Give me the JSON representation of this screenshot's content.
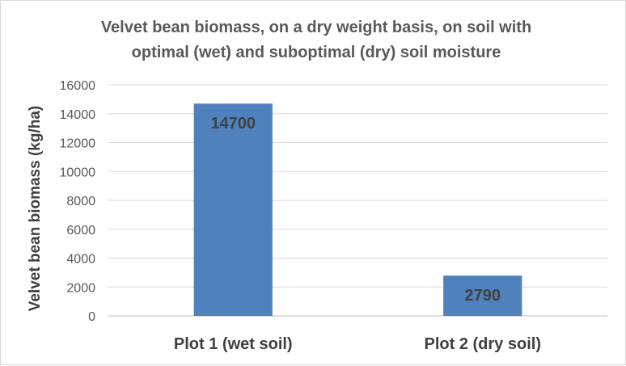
{
  "chart_data": {
    "type": "bar",
    "title_lines": [
      "Velvet bean biomass, on a dry weight basis, on soil with",
      "optimal (wet) and suboptimal (dry) soil moisture"
    ],
    "xlabel": "",
    "ylabel": "Velvet bean biomass (kg/ha)",
    "categories": [
      "Plot 1 (wet soil)",
      "Plot 2 (dry soil)"
    ],
    "values": [
      14700,
      2790
    ],
    "data_labels": [
      "14700",
      "2790"
    ],
    "ylim": [
      0,
      16000
    ],
    "yticks": [
      0,
      2000,
      4000,
      6000,
      8000,
      10000,
      12000,
      14000,
      16000
    ],
    "grid": true,
    "legend": "none",
    "bar_color": "#4f81bd"
  }
}
